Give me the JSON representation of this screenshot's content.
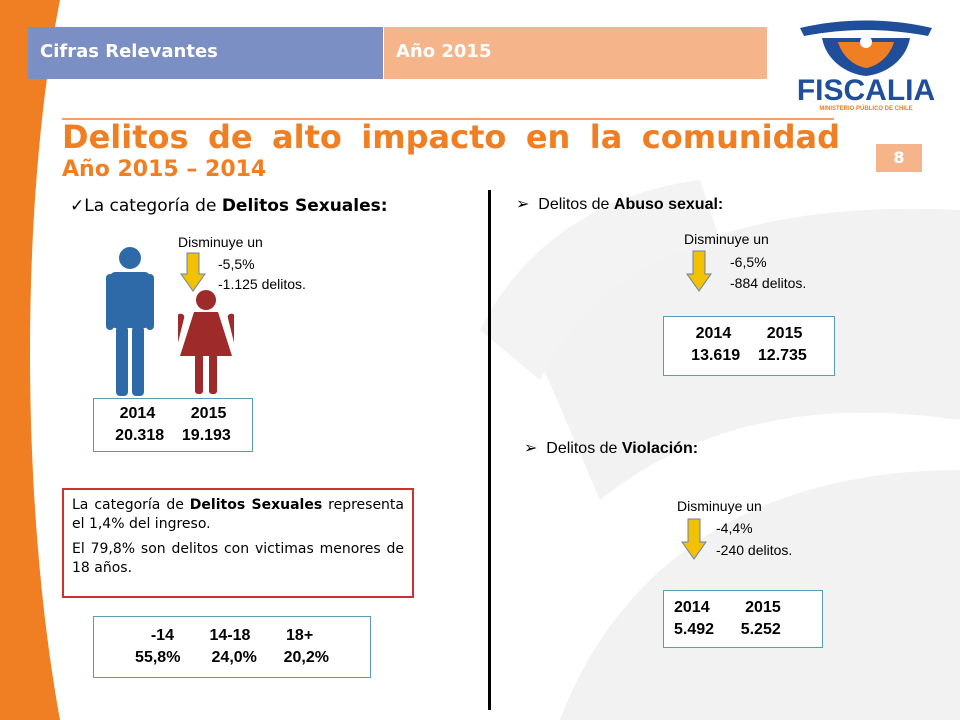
{
  "header": {
    "left_tab": "Cifras Relevantes",
    "right_tab": "Año 2015",
    "left_color": "#7b8fc4",
    "right_color": "#f6b48b"
  },
  "logo": {
    "name": "FISCALIA",
    "subtitle": "MINISTERIO PÚBLICO DE CHILE"
  },
  "title": "Delitos de alto impacto en la comunidad",
  "subtitle": "Año 2015 – 2014",
  "page_number": "8",
  "left": {
    "heading_prefix": "La categoría de ",
    "heading_bold": "Delitos Sexuales:",
    "decrease_label": "Disminuye un",
    "decrease_pct": "-5,5%",
    "decrease_count": "-1.125 delitos.",
    "years": "2014        2015",
    "values": "20.318    19.193",
    "info_p1_a": "La categoría de ",
    "info_p1_b": "Delitos Sexuales",
    "info_p1_c": " representa el 1,4% del ingreso.",
    "info_p2": "El 79,8% son delitos con victimas menores de 18 años.",
    "age_groups": "-14        14-18        18+",
    "age_values": "55,8%       24,0%      20,2%"
  },
  "abuso": {
    "heading_prefix": "Delitos de ",
    "heading_bold": "Abuso sexual:",
    "decrease_label": "Disminuye un",
    "decrease_pct": "-6,5%",
    "decrease_count": "-884 delitos.",
    "years": "2014        2015",
    "values": "13.619    12.735"
  },
  "violacion": {
    "heading_prefix": "Delitos de ",
    "heading_bold": "Violación:",
    "decrease_label": "Disminuye un",
    "decrease_pct": "-4,4%",
    "decrease_count": "-240 delitos.",
    "years": "2014        2015",
    "values": "5.492      5.252"
  },
  "icons": {
    "man_color": "#2e6aa8",
    "woman_color": "#9e2a2a",
    "arrow_color": "#f2c200"
  }
}
